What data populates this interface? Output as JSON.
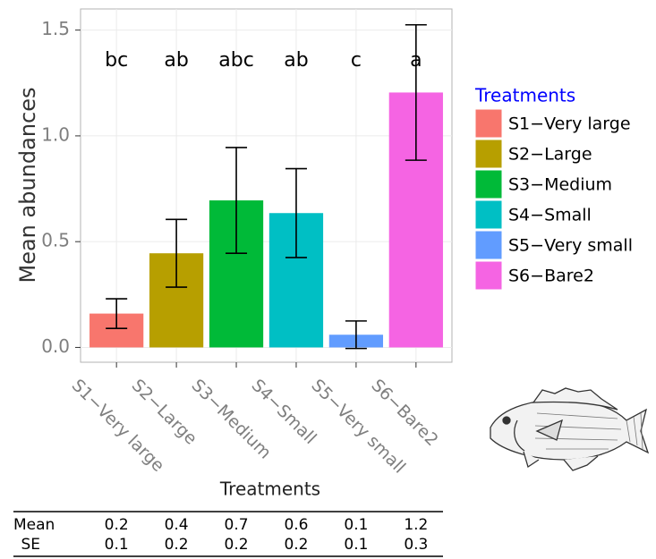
{
  "chart_data": {
    "type": "bar",
    "xlabel": "Treatments",
    "ylabel": "Mean abundances",
    "legend_title": "Treatments",
    "categories": [
      "S1−Very large",
      "S2−Large",
      "S3−Medium",
      "S4−Small",
      "S5−Very small",
      "S6−Bare2"
    ],
    "values": [
      0.16,
      0.445,
      0.695,
      0.635,
      0.06,
      1.205
    ],
    "errors": [
      0.07,
      0.16,
      0.25,
      0.21,
      0.065,
      0.32
    ],
    "letters": [
      "bc",
      "ab",
      "abc",
      "ab",
      "c",
      "a"
    ],
    "colors": [
      "#F8766D",
      "#B79F00",
      "#00BA38",
      "#00BFC4",
      "#619CFF",
      "#F564E3"
    ],
    "ylim": [
      -0.07,
      1.6
    ],
    "yticks": [
      {
        "value": 0,
        "label": "0.0"
      },
      0.5,
      {
        "value": 1,
        "label": "1.0"
      },
      1.5
    ],
    "grid": true
  },
  "table": {
    "row_labels": [
      "Mean",
      "SE"
    ],
    "rows": [
      [
        0.2,
        0.4,
        0.7,
        0.6,
        0.1,
        1.2
      ],
      [
        0.1,
        0.2,
        0.2,
        0.2,
        0.1,
        0.3
      ]
    ]
  }
}
